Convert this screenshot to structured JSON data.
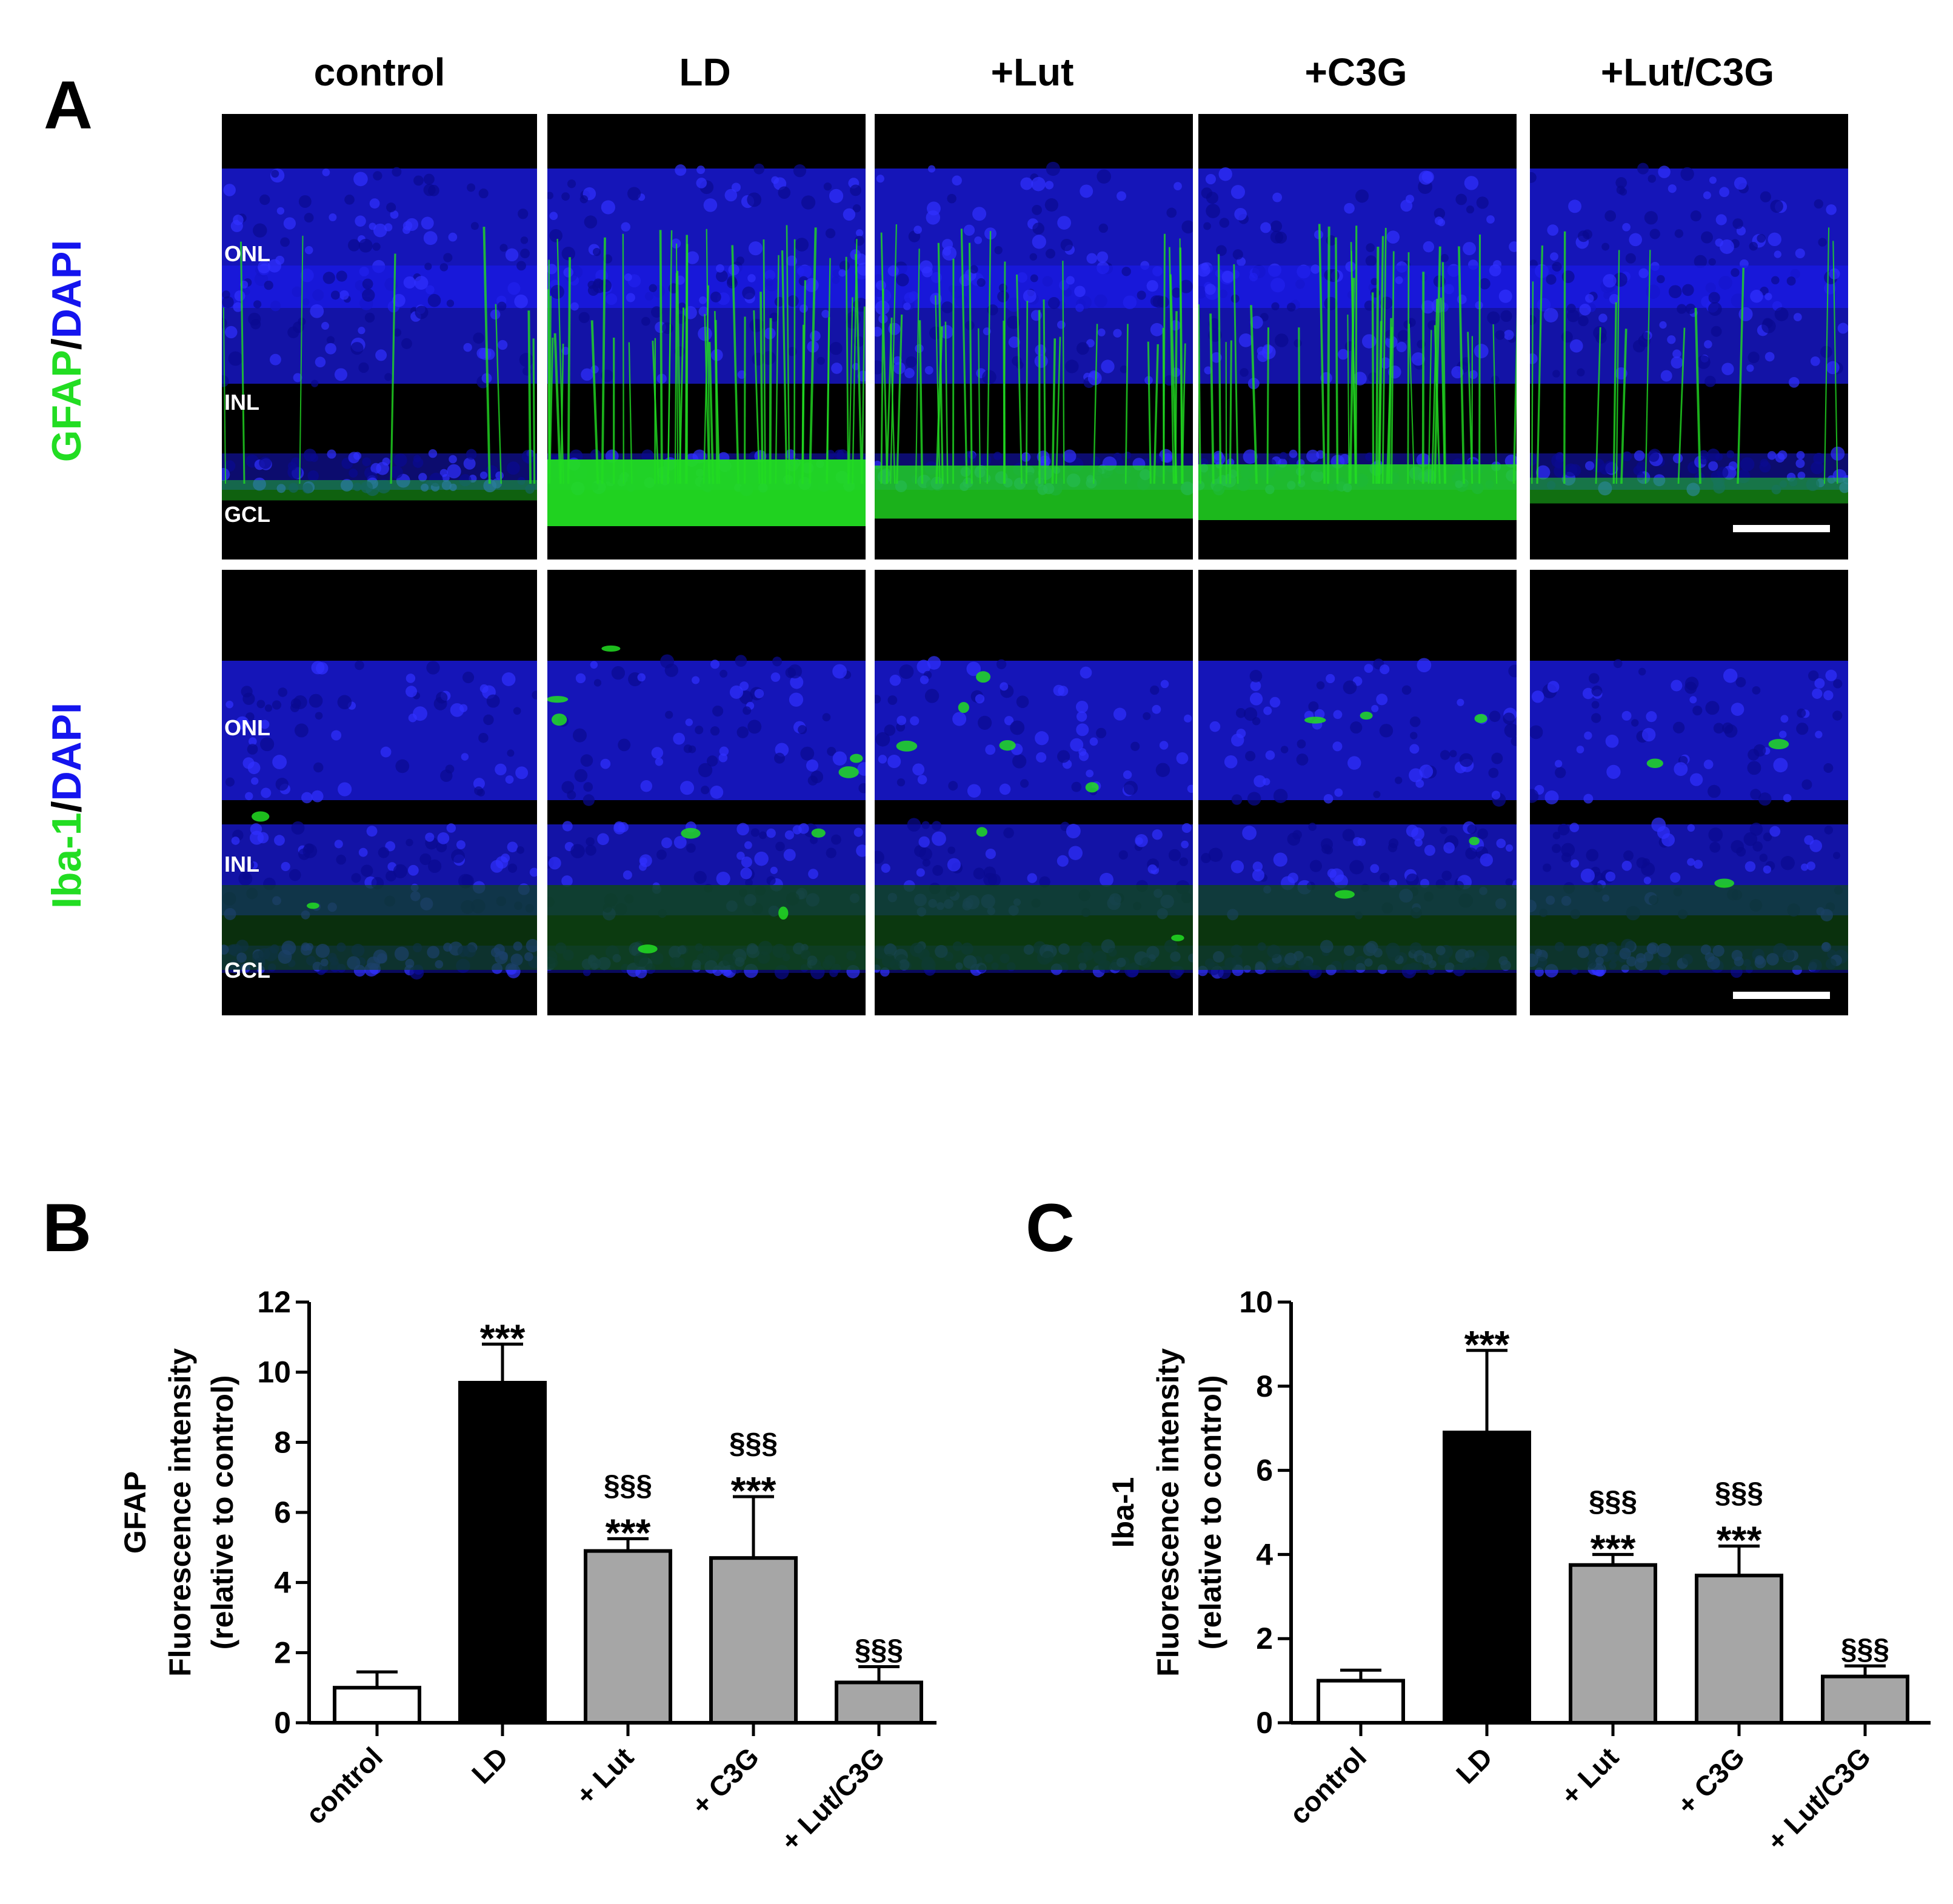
{
  "panels": {
    "a_letter": "A",
    "b_letter": "B",
    "c_letter": "C"
  },
  "groups_header": [
    "control",
    "LD",
    "+Lut",
    "+C3G",
    "+Lut/C3G"
  ],
  "rows": [
    {
      "stain_green": "GFAP",
      "separator": "/",
      "stain_blue": "DAPI",
      "layers": [
        "ONL",
        "INL",
        "GCL"
      ]
    },
    {
      "stain_green": "Iba-1",
      "separator": "/",
      "stain_blue": "DAPI",
      "layers": [
        "ONL",
        "INL",
        "GCL"
      ]
    }
  ],
  "colors": {
    "dapi_blue": "#1a1ae6",
    "marker_green": "#22dd22",
    "control_bar": "#ffffff",
    "ld_bar": "#000000",
    "treatment_bar": "#a6a6a6"
  },
  "chart_data": [
    {
      "type": "bar",
      "panel": "B",
      "title": "",
      "ylabel_lines": [
        "GFAP",
        "Fluorescence intensity",
        "(relative to control)"
      ],
      "categories": [
        "control",
        "LD",
        "+ Lut",
        "+ C3G",
        "+ Lut/C3G"
      ],
      "values": [
        1.0,
        9.7,
        4.9,
        4.7,
        1.15
      ],
      "errors": [
        0.45,
        1.1,
        0.35,
        1.75,
        0.45
      ],
      "annotations": [
        [],
        [
          "***"
        ],
        [
          "§§§",
          "***"
        ],
        [
          "§§§",
          "***"
        ],
        [
          "§§§"
        ]
      ],
      "bar_colors": [
        "#ffffff",
        "#000000",
        "#a6a6a6",
        "#a6a6a6",
        "#a6a6a6"
      ],
      "ylim": [
        0,
        12
      ],
      "yticks": [
        0,
        2,
        4,
        6,
        8,
        10,
        12
      ]
    },
    {
      "type": "bar",
      "panel": "C",
      "title": "",
      "ylabel_lines": [
        "Iba-1",
        "Fluorescence intensity",
        "(relative to control)"
      ],
      "categories": [
        "control",
        "LD",
        "+ Lut",
        "+ C3G",
        "+ Lut/C3G"
      ],
      "values": [
        1.0,
        6.9,
        3.75,
        3.5,
        1.1
      ],
      "errors": [
        0.25,
        1.95,
        0.25,
        0.7,
        0.25
      ],
      "annotations": [
        [],
        [
          "***"
        ],
        [
          "§§§",
          "***"
        ],
        [
          "§§§",
          "***"
        ],
        [
          "§§§"
        ]
      ],
      "bar_colors": [
        "#ffffff",
        "#000000",
        "#a6a6a6",
        "#a6a6a6",
        "#a6a6a6"
      ],
      "ylim": [
        0,
        10
      ],
      "yticks": [
        0,
        2,
        4,
        6,
        8,
        10
      ]
    }
  ]
}
